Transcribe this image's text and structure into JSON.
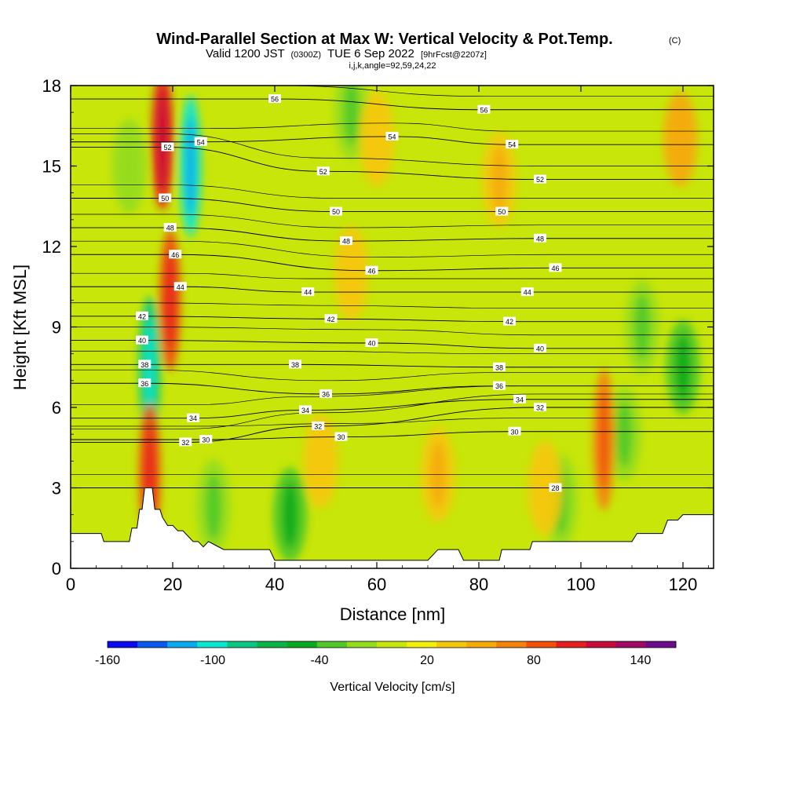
{
  "header": {
    "title": "Wind-Parallel Section at Max W: Vertical Velocity & Pot.Temp.",
    "copyright": "(C)",
    "valid_prefix": "Valid 1200 JST",
    "valid_utc": "(0300Z)",
    "valid_date": "TUE 6 Sep 2022",
    "forecast": "[9hrFcst@2207z]",
    "indices": "i,j,k,angle=92,59,24,22"
  },
  "colorbar": {
    "title": "Vertical Velocity [cm/s]",
    "tick_labels": [
      "-160",
      "-100",
      "-40",
      "20",
      "80",
      "140"
    ],
    "colors": [
      "#0a0af0",
      "#0a5af0",
      "#0aaaf0",
      "#0ae6d2",
      "#0ac882",
      "#0ab446",
      "#0aaa1e",
      "#50c828",
      "#96dc1e",
      "#c8e60a",
      "#f0f00a",
      "#f5c80a",
      "#f5aa0a",
      "#f5820a",
      "#f0500a",
      "#e61e1e",
      "#c80a3c",
      "#a00a64",
      "#6e0a8c"
    ]
  },
  "chart_data": {
    "type": "heatmap",
    "description_series": "Vertical velocity (shaded, cm/s) with potential temperature contours",
    "xlabel": "Distance [nm]",
    "ylabel": "Height [Kft MSL]",
    "xlim": [
      0,
      126
    ],
    "ylim": [
      0,
      18
    ],
    "x_ticks": [
      0,
      20,
      40,
      60,
      80,
      100,
      120
    ],
    "y_ticks": [
      0,
      3,
      6,
      9,
      12,
      15,
      18
    ],
    "terrain": [
      [
        0,
        1.3
      ],
      [
        2,
        1.3
      ],
      [
        6,
        1.3
      ],
      [
        6.5,
        1.0
      ],
      [
        10,
        1.0
      ],
      [
        11.5,
        1.0
      ],
      [
        12,
        1.5
      ],
      [
        13,
        1.5
      ],
      [
        13.5,
        2.2
      ],
      [
        14,
        2.2
      ],
      [
        14.5,
        3.0
      ],
      [
        16,
        3.0
      ],
      [
        16.5,
        2.2
      ],
      [
        17.5,
        2.2
      ],
      [
        18,
        1.9
      ],
      [
        19,
        1.6
      ],
      [
        20,
        1.6
      ],
      [
        21,
        1.4
      ],
      [
        22,
        1.4
      ],
      [
        23,
        1.2
      ],
      [
        24,
        1.0
      ],
      [
        25,
        1.0
      ],
      [
        26,
        0.8
      ],
      [
        27,
        1.0
      ],
      [
        28,
        0.9
      ],
      [
        30,
        0.7
      ],
      [
        39,
        0.7
      ],
      [
        40,
        0.3
      ],
      [
        44,
        0.3
      ],
      [
        55,
        0.3
      ],
      [
        60,
        0.3
      ],
      [
        64,
        0.3
      ],
      [
        70,
        0.3
      ],
      [
        72,
        0.7
      ],
      [
        76,
        0.7
      ],
      [
        77,
        0.3
      ],
      [
        80,
        0.3
      ],
      [
        84,
        0.3
      ],
      [
        84.5,
        0.7
      ],
      [
        90,
        0.7
      ],
      [
        90.5,
        1.0
      ],
      [
        110,
        1.0
      ],
      [
        111,
        1.3
      ],
      [
        116,
        1.3
      ],
      [
        117,
        1.8
      ],
      [
        119,
        1.8
      ],
      [
        120,
        2.0
      ],
      [
        126,
        2.0
      ]
    ],
    "theta_contours": [
      {
        "value": 28,
        "label_pos": [
          95,
          3.0
        ]
      },
      {
        "value": 30,
        "label_pos": [
          26.5,
          4.8
        ]
      },
      {
        "value": 30,
        "label_pos": [
          53,
          4.9
        ]
      },
      {
        "value": 30,
        "label_pos": [
          87,
          5.1
        ]
      },
      {
        "value": 32,
        "label_pos": [
          22.5,
          4.7
        ]
      },
      {
        "value": 32,
        "label_pos": [
          48.5,
          5.3
        ]
      },
      {
        "value": 32,
        "label_pos": [
          92,
          6.0
        ]
      },
      {
        "value": 34,
        "label_pos": [
          24,
          5.6
        ]
      },
      {
        "value": 34,
        "label_pos": [
          46,
          5.9
        ]
      },
      {
        "value": 34,
        "label_pos": [
          88,
          6.3
        ]
      },
      {
        "value": 36,
        "label_pos": [
          14.5,
          6.9
        ]
      },
      {
        "value": 36,
        "label_pos": [
          50,
          6.5
        ]
      },
      {
        "value": 36,
        "label_pos": [
          84,
          6.8
        ]
      },
      {
        "value": 38,
        "label_pos": [
          14.5,
          7.6
        ]
      },
      {
        "value": 38,
        "label_pos": [
          44,
          7.6
        ]
      },
      {
        "value": 38,
        "label_pos": [
          84,
          7.5
        ]
      },
      {
        "value": 40,
        "label_pos": [
          14,
          8.5
        ]
      },
      {
        "value": 40,
        "label_pos": [
          59,
          8.4
        ]
      },
      {
        "value": 40,
        "label_pos": [
          92,
          8.2
        ]
      },
      {
        "value": 42,
        "label_pos": [
          14,
          9.4
        ]
      },
      {
        "value": 42,
        "label_pos": [
          51,
          9.3
        ]
      },
      {
        "value": 42,
        "label_pos": [
          86,
          9.2
        ]
      },
      {
        "value": 44,
        "label_pos": [
          21.5,
          10.5
        ]
      },
      {
        "value": 44,
        "label_pos": [
          46.5,
          10.3
        ]
      },
      {
        "value": 44,
        "label_pos": [
          89.5,
          10.3
        ]
      },
      {
        "value": 46,
        "label_pos": [
          20.5,
          11.7
        ]
      },
      {
        "value": 46,
        "label_pos": [
          59,
          11.1
        ]
      },
      {
        "value": 46,
        "label_pos": [
          95,
          11.2
        ]
      },
      {
        "value": 48,
        "label_pos": [
          19.5,
          12.7
        ]
      },
      {
        "value": 48,
        "label_pos": [
          54,
          12.2
        ]
      },
      {
        "value": 48,
        "label_pos": [
          92,
          12.3
        ]
      },
      {
        "value": 50,
        "label_pos": [
          18.5,
          13.8
        ]
      },
      {
        "value": 50,
        "label_pos": [
          52,
          13.3
        ]
      },
      {
        "value": 50,
        "label_pos": [
          84.5,
          13.3
        ]
      },
      {
        "value": 52,
        "label_pos": [
          19,
          15.7
        ]
      },
      {
        "value": 52,
        "label_pos": [
          49.5,
          14.8
        ]
      },
      {
        "value": 52,
        "label_pos": [
          92,
          14.5
        ]
      },
      {
        "value": 54,
        "label_pos": [
          25.5,
          15.9
        ]
      },
      {
        "value": 54,
        "label_pos": [
          63,
          16.1
        ]
      },
      {
        "value": 54,
        "label_pos": [
          86.5,
          15.8
        ]
      },
      {
        "value": 56,
        "label_pos": [
          40,
          17.5
        ]
      },
      {
        "value": 56,
        "label_pos": [
          81,
          17.1
        ]
      }
    ],
    "updraft_cores": [
      {
        "x": 18,
        "y": 16,
        "w": 110
      },
      {
        "x": 19.5,
        "y": 10,
        "w": 95
      },
      {
        "x": 15.5,
        "y": 3.5,
        "w": 95
      },
      {
        "x": 104.5,
        "y": 4.8,
        "w": 75
      },
      {
        "x": 119.5,
        "y": 16,
        "w": 50
      },
      {
        "x": 84,
        "y": 14.5,
        "w": 40
      },
      {
        "x": 72,
        "y": 3.5,
        "w": 40
      },
      {
        "x": 49,
        "y": 4.0,
        "w": 35
      },
      {
        "x": 55,
        "y": 11.0,
        "w": 30
      },
      {
        "x": 93,
        "y": 3.0,
        "w": 30
      },
      {
        "x": 60,
        "y": 16,
        "w": 30
      }
    ],
    "downdraft_cores": [
      {
        "x": 23.5,
        "y": 15,
        "w": -120
      },
      {
        "x": 15.5,
        "y": 7.5,
        "w": -100
      },
      {
        "x": 120,
        "y": 7.5,
        "w": -45
      },
      {
        "x": 43,
        "y": 2.0,
        "w": -50
      },
      {
        "x": 28,
        "y": 2.3,
        "w": -30
      },
      {
        "x": 96,
        "y": 2.5,
        "w": -30
      },
      {
        "x": 108.5,
        "y": 5.0,
        "w": -30
      },
      {
        "x": 112,
        "y": 9.0,
        "w": -25
      },
      {
        "x": 11.5,
        "y": 15,
        "w": -20
      },
      {
        "x": 55,
        "y": 17,
        "w": -25
      }
    ]
  }
}
